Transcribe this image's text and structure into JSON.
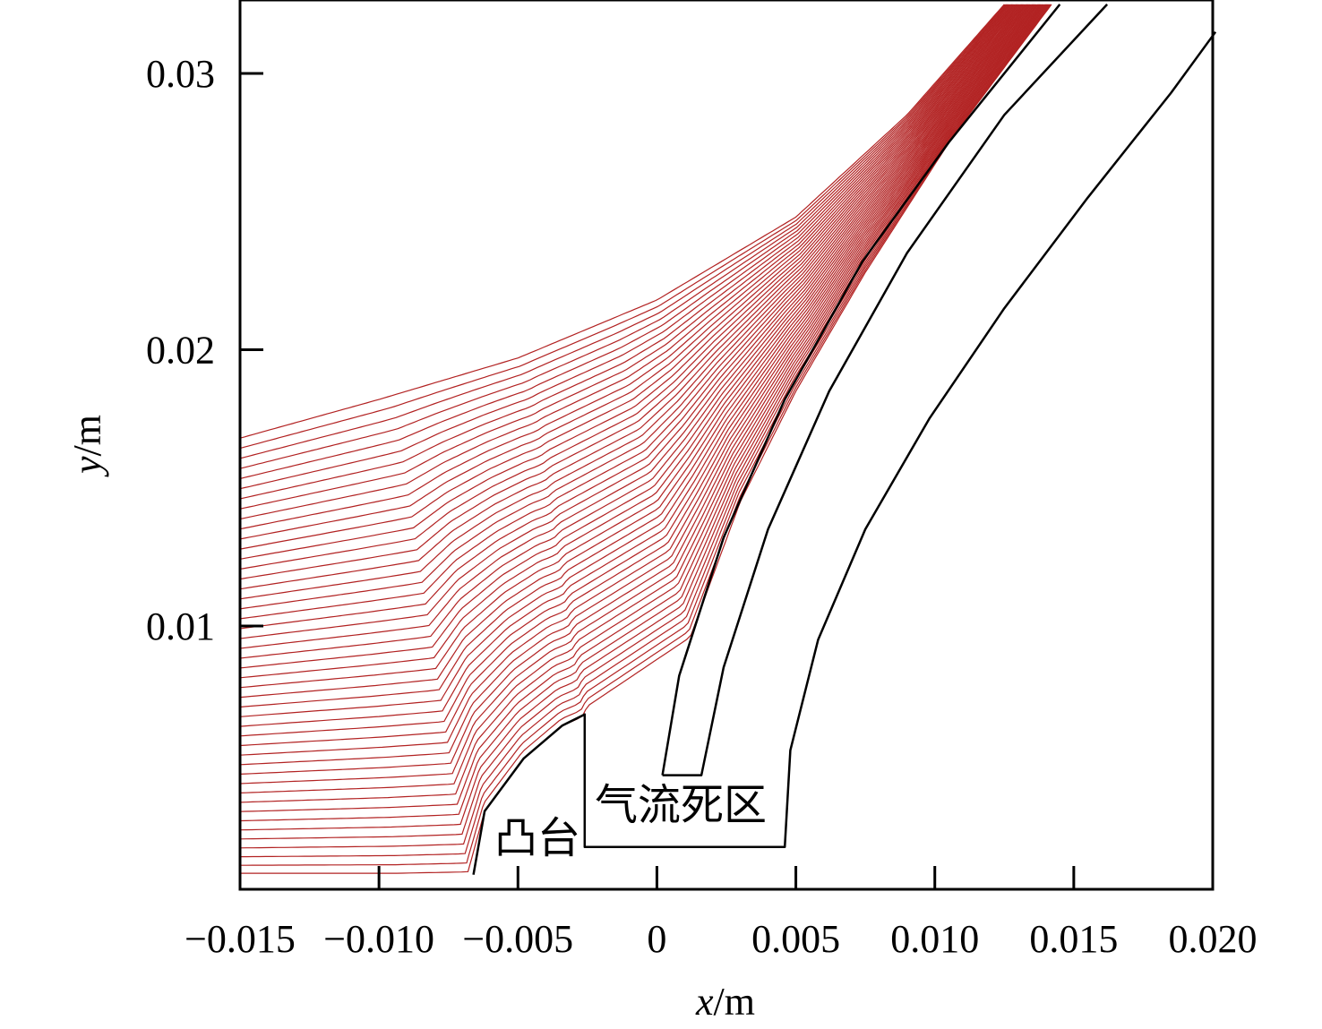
{
  "chart_data": {
    "type": "line",
    "xlabel": {
      "var": "x",
      "unit": "/m"
    },
    "ylabel": {
      "var": "y",
      "unit": "/m"
    },
    "xlim": [
      -0.015,
      0.02
    ],
    "ylim": [
      0.001,
      0.0325
    ],
    "x_ticks": [
      -0.015,
      -0.01,
      -0.005,
      0,
      0.005,
      0.01,
      0.015,
      0.02
    ],
    "x_tick_labels": [
      "−0.015",
      "−0.010",
      "−0.005",
      "0",
      "0.005",
      "0.010",
      "0.015",
      "0.020"
    ],
    "y_ticks": [
      0.01,
      0.02,
      0.03
    ],
    "y_tick_labels": [
      "0.01",
      "0.02",
      "0.03"
    ],
    "grid": false,
    "colors": {
      "streamlines": "#b22222",
      "walls": "#000000"
    },
    "streamlines": {
      "count": 46,
      "start_x": -0.015,
      "start_y_range": [
        0.001,
        0.0168
      ],
      "note_free": true,
      "bottom_line": [
        [
          -0.015,
          0.00105
        ],
        [
          -0.0094,
          0.00105
        ],
        [
          -0.0068,
          0.0011
        ]
      ],
      "top_line": [
        [
          -0.015,
          0.0168
        ],
        [
          -0.01,
          0.0182
        ],
        [
          -0.005,
          0.0197
        ],
        [
          0,
          0.0218
        ],
        [
          0.005,
          0.0248
        ],
        [
          0.009,
          0.0285
        ],
        [
          0.0125,
          0.0325
        ]
      ],
      "lower_boundary": [
        [
          -0.0068,
          0.0011
        ],
        [
          -0.0062,
          0.0033
        ],
        [
          -0.0048,
          0.0052
        ],
        [
          -0.0034,
          0.0064
        ],
        [
          -0.0027,
          0.0067
        ],
        [
          -0.0025,
          0.0071
        ],
        [
          0.0012,
          0.0096
        ],
        [
          0.003,
          0.0145
        ],
        [
          0.005,
          0.0185
        ],
        [
          0.0075,
          0.0228
        ],
        [
          0.0107,
          0.0278
        ],
        [
          0.0142,
          0.0325
        ]
      ]
    },
    "walls": [
      [
        [
          -0.0066,
          0.001
        ],
        [
          -0.0062,
          0.0033
        ],
        [
          -0.0048,
          0.0052
        ],
        [
          -0.0034,
          0.0064
        ],
        [
          -0.0026,
          0.0068
        ],
        [
          -0.0026,
          0.002
        ],
        [
          0.0046,
          0.002
        ],
        [
          0.0048,
          0.0055
        ],
        [
          0.0058,
          0.0095
        ],
        [
          0.0075,
          0.0135
        ],
        [
          0.0098,
          0.0175
        ],
        [
          0.0125,
          0.0215
        ],
        [
          0.0155,
          0.0255
        ],
        [
          0.0185,
          0.0293
        ],
        [
          0.0201,
          0.0315
        ]
      ],
      [
        [
          0.0002,
          0.0046
        ],
        [
          0.0016,
          0.0046
        ],
        [
          0.0024,
          0.0085
        ],
        [
          0.004,
          0.0135
        ],
        [
          0.0062,
          0.0185
        ],
        [
          0.009,
          0.0235
        ],
        [
          0.0125,
          0.0285
        ],
        [
          0.0162,
          0.0325
        ]
      ],
      [
        [
          0.0002,
          0.0046
        ],
        [
          0.0008,
          0.0082
        ],
        [
          0.0024,
          0.0132
        ],
        [
          0.0046,
          0.0182
        ],
        [
          0.0074,
          0.0232
        ],
        [
          0.0105,
          0.0275
        ],
        [
          0.0145,
          0.0325
        ]
      ]
    ],
    "annotations": [
      "凸台",
      "气流死区"
    ]
  }
}
